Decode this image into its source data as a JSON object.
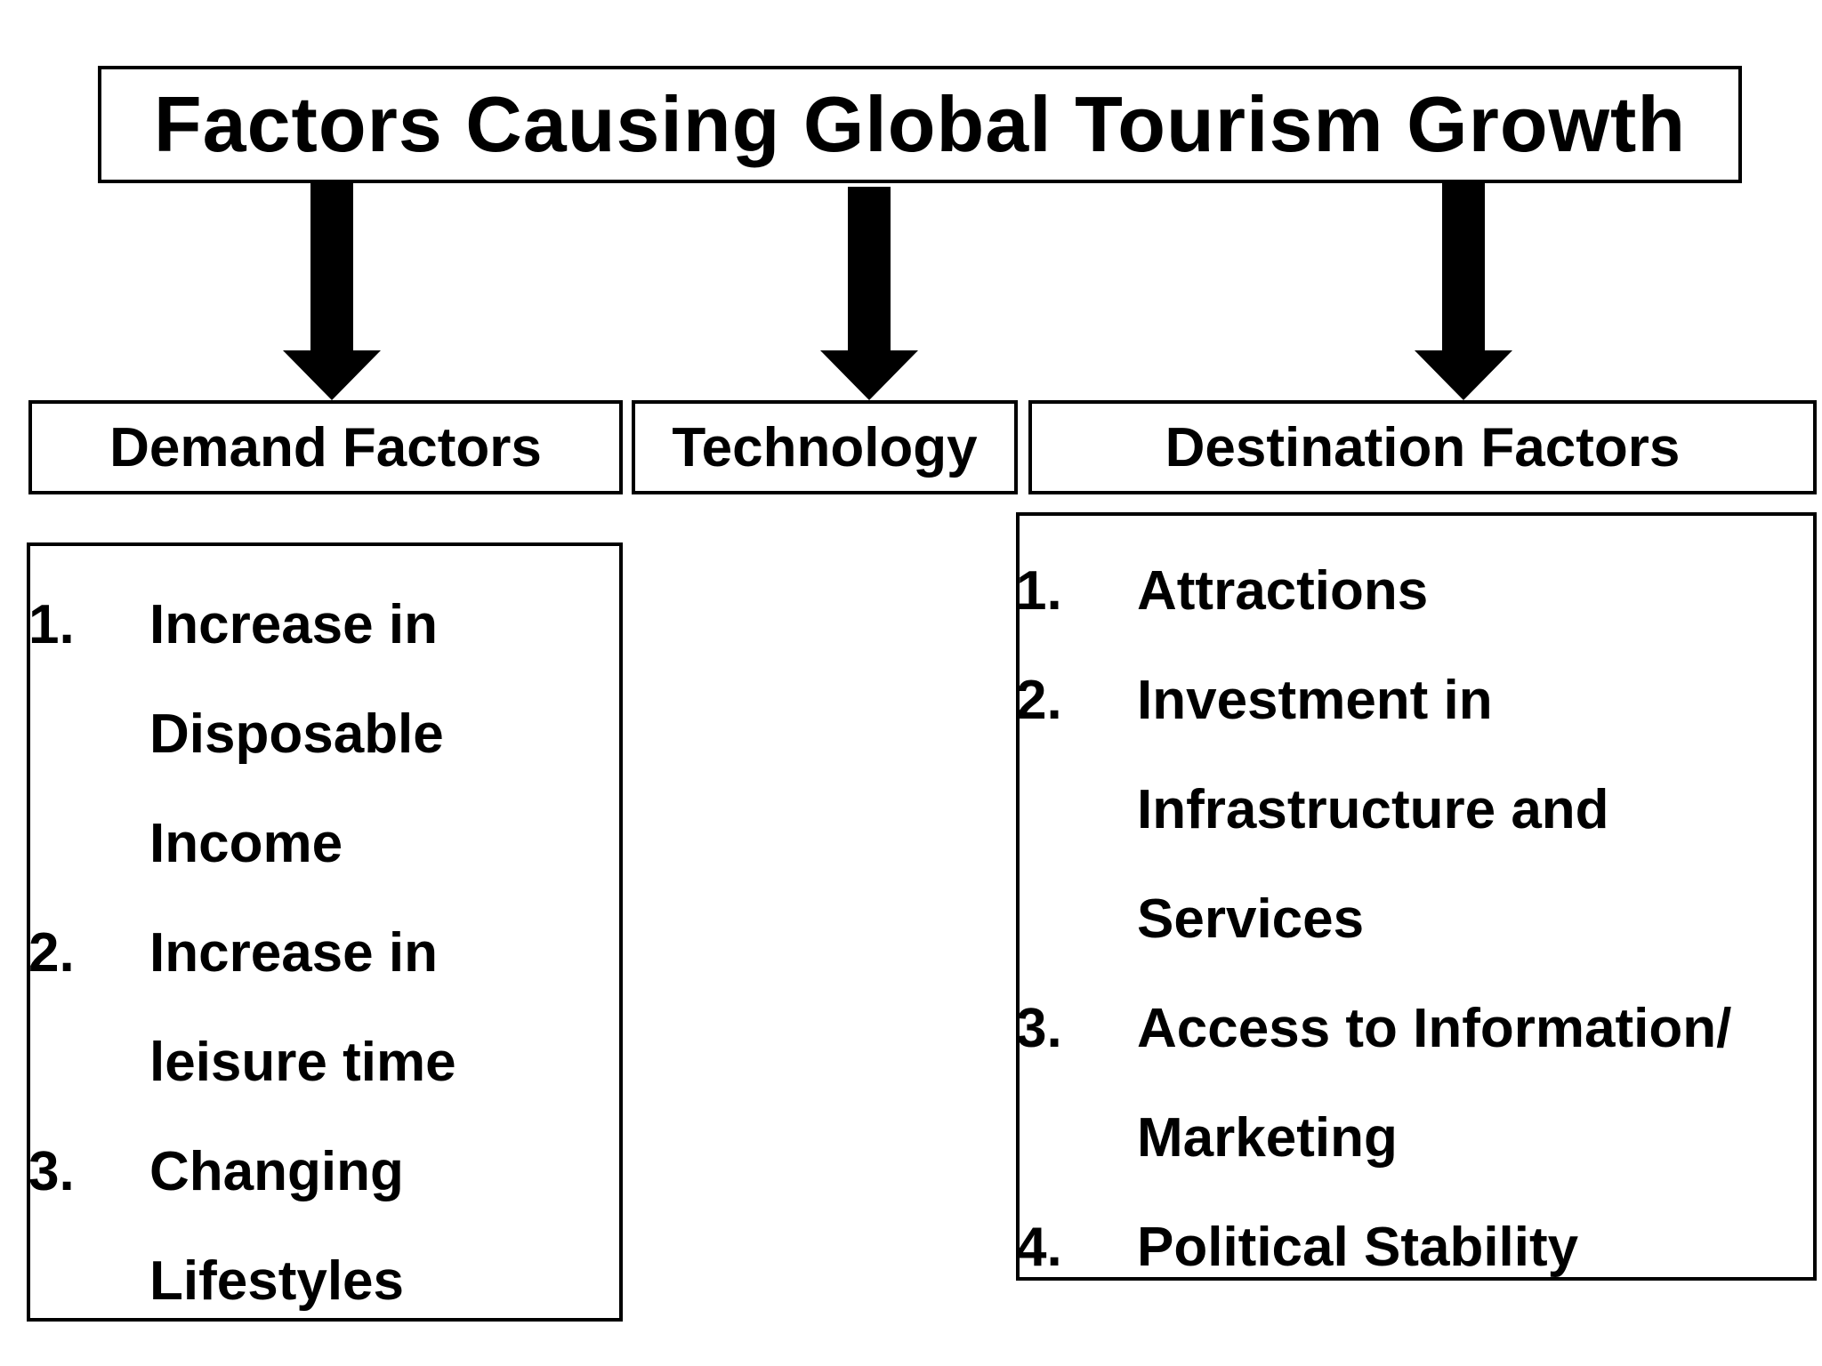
{
  "title": "Factors Causing Global Tourism Growth",
  "categories": [
    {
      "id": "demand",
      "label": "Demand Factors",
      "items": [
        {
          "number": "1.",
          "lines": [
            "Increase in",
            "Disposable",
            "Income"
          ]
        },
        {
          "number": "2.",
          "lines": [
            "Increase in",
            "leisure time"
          ]
        },
        {
          "number": "3.",
          "lines": [
            "Changing",
            "Lifestyles"
          ]
        }
      ]
    },
    {
      "id": "technology",
      "label": "Technology",
      "items": []
    },
    {
      "id": "destination",
      "label": "Destination Factors",
      "items": [
        {
          "number": "1.",
          "lines": [
            "Attractions"
          ]
        },
        {
          "number": "2.",
          "lines": [
            "Investment in",
            "Infrastructure and",
            "Services"
          ]
        },
        {
          "number": "3.",
          "lines": [
            "Access to Information/",
            "Marketing"
          ]
        },
        {
          "number": "4.",
          "lines": [
            "Political Stability"
          ]
        }
      ]
    }
  ],
  "colors": {
    "stroke": "#000000",
    "background": "#ffffff"
  }
}
